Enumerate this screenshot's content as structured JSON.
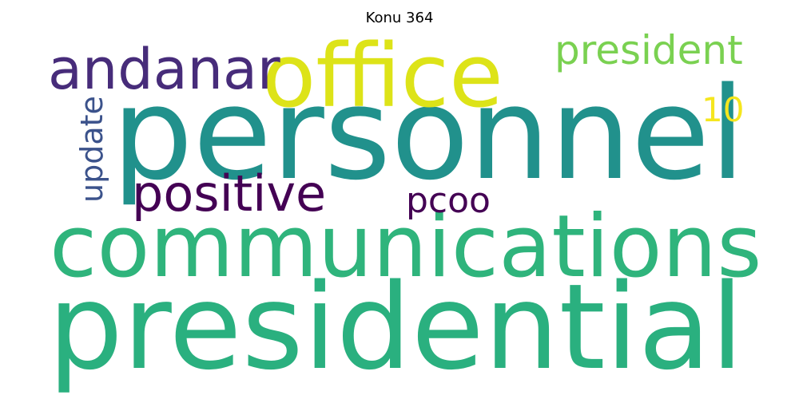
{
  "title": "Konu 364",
  "words": [
    {
      "text": "personnel",
      "color": "#21918c"
    },
    {
      "text": "presidential",
      "color": "#2ab07f"
    },
    {
      "text": "communications",
      "color": "#2fb47c"
    },
    {
      "text": "office",
      "color": "#dde318"
    },
    {
      "text": "andanar",
      "color": "#472c7a"
    },
    {
      "text": "president",
      "color": "#7ad151"
    },
    {
      "text": "positive",
      "color": "#440154"
    },
    {
      "text": "update",
      "color": "#3b528b"
    },
    {
      "text": "pcoo",
      "color": "#440154"
    },
    {
      "text": "10",
      "color": "#f5e61e"
    }
  ]
}
